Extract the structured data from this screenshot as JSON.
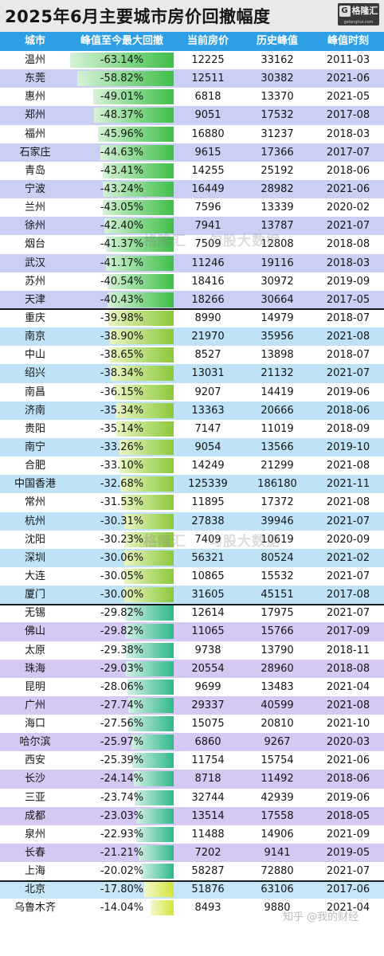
{
  "title": "2025年6月主要城市房价回撤幅度",
  "logo": {
    "name": "格隆汇",
    "url": "gelonghui.com"
  },
  "headers": [
    "城市",
    "峰值至今最大回撤",
    "当前房价",
    "历史峰值",
    "峰值时刻"
  ],
  "rows": [
    {
      "city": "温州",
      "drawdown": "-63.14%",
      "price": "12225",
      "peak": "33162",
      "peak_time": "2011-03",
      "pct": 63.14
    },
    {
      "city": "东莞",
      "drawdown": "-58.82%",
      "price": "12511",
      "peak": "30382",
      "peak_time": "2021-06",
      "pct": 58.82
    },
    {
      "city": "惠州",
      "drawdown": "-49.01%",
      "price": "6818",
      "peak": "13370",
      "peak_time": "2021-05",
      "pct": 49.01
    },
    {
      "city": "郑州",
      "drawdown": "-48.37%",
      "price": "9051",
      "peak": "17532",
      "peak_time": "2017-08",
      "pct": 48.37
    },
    {
      "city": "福州",
      "drawdown": "-45.96%",
      "price": "16880",
      "peak": "31237",
      "peak_time": "2018-03",
      "pct": 45.96
    },
    {
      "city": "石家庄",
      "drawdown": "-44.63%",
      "price": "9615",
      "peak": "17366",
      "peak_time": "2017-07",
      "pct": 44.63
    },
    {
      "city": "青岛",
      "drawdown": "-43.41%",
      "price": "14255",
      "peak": "25192",
      "peak_time": "2018-06",
      "pct": 43.41
    },
    {
      "city": "宁波",
      "drawdown": "-43.24%",
      "price": "16449",
      "peak": "28982",
      "peak_time": "2021-06",
      "pct": 43.24
    },
    {
      "city": "兰州",
      "drawdown": "-43.05%",
      "price": "7596",
      "peak": "13339",
      "peak_time": "2020-02",
      "pct": 43.05
    },
    {
      "city": "徐州",
      "drawdown": "-42.40%",
      "price": "7941",
      "peak": "13787",
      "peak_time": "2021-07",
      "pct": 42.4
    },
    {
      "city": "烟台",
      "drawdown": "-41.37%",
      "price": "7509",
      "peak": "12808",
      "peak_time": "2018-08",
      "pct": 41.37
    },
    {
      "city": "武汉",
      "drawdown": "-41.17%",
      "price": "11246",
      "peak": "19116",
      "peak_time": "2018-03",
      "pct": 41.17
    },
    {
      "city": "苏州",
      "drawdown": "-40.54%",
      "price": "18416",
      "peak": "30972",
      "peak_time": "2019-09",
      "pct": 40.54
    },
    {
      "city": "天津",
      "drawdown": "-40.43%",
      "price": "18266",
      "peak": "30664",
      "peak_time": "2017-05",
      "pct": 40.43
    },
    {
      "city": "重庆",
      "drawdown": "-39.98%",
      "price": "8990",
      "peak": "14979",
      "peak_time": "2018-07",
      "pct": 39.98
    },
    {
      "city": "南京",
      "drawdown": "-38.90%",
      "price": "21970",
      "peak": "35956",
      "peak_time": "2021-08",
      "pct": 38.9
    },
    {
      "city": "中山",
      "drawdown": "-38.65%",
      "price": "8527",
      "peak": "13898",
      "peak_time": "2018-07",
      "pct": 38.65
    },
    {
      "city": "绍兴",
      "drawdown": "-38.34%",
      "price": "13031",
      "peak": "21132",
      "peak_time": "2021-07",
      "pct": 38.34
    },
    {
      "city": "南昌",
      "drawdown": "-36.15%",
      "price": "9207",
      "peak": "14419",
      "peak_time": "2019-06",
      "pct": 36.15
    },
    {
      "city": "济南",
      "drawdown": "-35.34%",
      "price": "13363",
      "peak": "20666",
      "peak_time": "2018-06",
      "pct": 35.34
    },
    {
      "city": "贵阳",
      "drawdown": "-35.14%",
      "price": "7147",
      "peak": "11019",
      "peak_time": "2018-09",
      "pct": 35.14
    },
    {
      "city": "南宁",
      "drawdown": "-33.26%",
      "price": "9054",
      "peak": "13566",
      "peak_time": "2019-10",
      "pct": 33.26
    },
    {
      "city": "合肥",
      "drawdown": "-33.10%",
      "price": "14249",
      "peak": "21299",
      "peak_time": "2021-08",
      "pct": 33.1
    },
    {
      "city": "中国香港",
      "drawdown": "-32.68%",
      "price": "125339",
      "peak": "186180",
      "peak_time": "2021-11",
      "pct": 32.68
    },
    {
      "city": "常州",
      "drawdown": "-31.53%",
      "price": "11895",
      "peak": "17372",
      "peak_time": "2021-08",
      "pct": 31.53
    },
    {
      "city": "杭州",
      "drawdown": "-30.31%",
      "price": "27838",
      "peak": "39946",
      "peak_time": "2021-07",
      "pct": 30.31
    },
    {
      "city": "沈阳",
      "drawdown": "-30.23%",
      "price": "7409",
      "peak": "10619",
      "peak_time": "2020-09",
      "pct": 30.23
    },
    {
      "city": "深圳",
      "drawdown": "-30.06%",
      "price": "56321",
      "peak": "80524",
      "peak_time": "2021-02",
      "pct": 30.06
    },
    {
      "city": "大连",
      "drawdown": "-30.05%",
      "price": "10865",
      "peak": "15532",
      "peak_time": "2021-07",
      "pct": 30.05
    },
    {
      "city": "厦门",
      "drawdown": "-30.00%",
      "price": "31605",
      "peak": "45151",
      "peak_time": "2017-08",
      "pct": 30.0
    },
    {
      "city": "无锡",
      "drawdown": "-29.82%",
      "price": "12614",
      "peak": "17975",
      "peak_time": "2021-07",
      "pct": 29.82
    },
    {
      "city": "佛山",
      "drawdown": "-29.82%",
      "price": "11065",
      "peak": "15766",
      "peak_time": "2017-09",
      "pct": 29.82
    },
    {
      "city": "太原",
      "drawdown": "-29.38%",
      "price": "9738",
      "peak": "13790",
      "peak_time": "2018-11",
      "pct": 29.38
    },
    {
      "city": "珠海",
      "drawdown": "-29.03%",
      "price": "20554",
      "peak": "28960",
      "peak_time": "2018-08",
      "pct": 29.03
    },
    {
      "city": "昆明",
      "drawdown": "-28.06%",
      "price": "9699",
      "peak": "13483",
      "peak_time": "2021-04",
      "pct": 28.06
    },
    {
      "city": "广州",
      "drawdown": "-27.74%",
      "price": "29337",
      "peak": "40599",
      "peak_time": "2021-08",
      "pct": 27.74
    },
    {
      "city": "海口",
      "drawdown": "-27.56%",
      "price": "15075",
      "peak": "20810",
      "peak_time": "2021-10",
      "pct": 27.56
    },
    {
      "city": "哈尔滨",
      "drawdown": "-25.97%",
      "price": "6860",
      "peak": "9267",
      "peak_time": "2020-03",
      "pct": 25.97
    },
    {
      "city": "西安",
      "drawdown": "-25.39%",
      "price": "11754",
      "peak": "15754",
      "peak_time": "2021-06",
      "pct": 25.39
    },
    {
      "city": "长沙",
      "drawdown": "-24.14%",
      "price": "8718",
      "peak": "11492",
      "peak_time": "2018-06",
      "pct": 24.14
    },
    {
      "city": "三亚",
      "drawdown": "-23.74%",
      "price": "32744",
      "peak": "42939",
      "peak_time": "2019-06",
      "pct": 23.74
    },
    {
      "city": "成都",
      "drawdown": "-23.03%",
      "price": "13514",
      "peak": "17558",
      "peak_time": "2018-05",
      "pct": 23.03
    },
    {
      "city": "泉州",
      "drawdown": "-22.93%",
      "price": "11488",
      "peak": "14906",
      "peak_time": "2021-09",
      "pct": 22.93
    },
    {
      "city": "长春",
      "drawdown": "-21.21%",
      "price": "7202",
      "peak": "9141",
      "peak_time": "2019-05",
      "pct": 21.21
    },
    {
      "city": "上海",
      "drawdown": "-20.02%",
      "price": "58287",
      "peak": "72880",
      "peak_time": "2021-07",
      "pct": 20.02
    },
    {
      "city": "北京",
      "drawdown": "-17.80%",
      "price": "51876",
      "peak": "63106",
      "peak_time": "2017-06",
      "pct": 17.8
    },
    {
      "city": "乌鲁木齐",
      "drawdown": "-14.04%",
      "price": "8493",
      "peak": "9880",
      "peak_time": "2021-04",
      "pct": 14.04
    }
  ],
  "groups": [
    {
      "from": 0,
      "to": 13,
      "bg_a": "#ffffff",
      "bg_b": "#c9d0f3",
      "bar_dark": "#3fbf48",
      "bar_light": "#d6f2d8"
    },
    {
      "from": 14,
      "to": 29,
      "bg_a": "#ffffff",
      "bg_b": "#bfe3f6",
      "bar_dark": "#8cc83a",
      "bar_light": "#eaf5c4"
    },
    {
      "from": 30,
      "to": 44,
      "bg_a": "#ffffff",
      "bg_b": "#d5c9f3",
      "bar_dark": "#2fb88a",
      "bar_light": "#d4f0e6"
    },
    {
      "from": 45,
      "to": 46,
      "bg_a": "#c6e6f7",
      "bg_b": "#ffffff",
      "bar_dark": "#d3e33a",
      "bar_light": "#f4f8cc"
    }
  ],
  "watermarks": {
    "brand": "格隆汇",
    "data": "勾股大数据",
    "site": "知乎 @我的财经"
  }
}
